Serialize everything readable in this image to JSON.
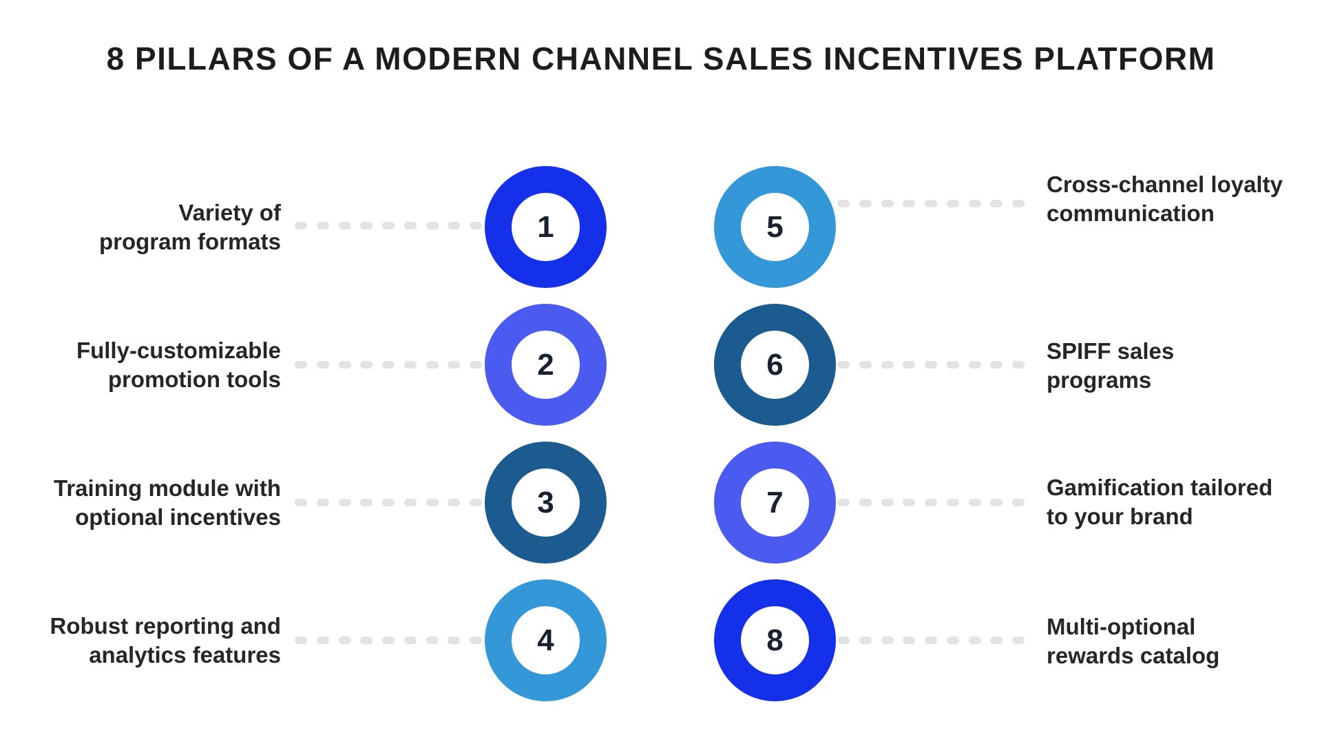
{
  "title": "8 PILLARS OF A MODERN CHANNEL SALES INCENTIVES PLATFORM",
  "colors": {
    "background": "#ffffff",
    "title_text": "#1d1d1d",
    "label_text": "#262626",
    "number_text": "#1a212e",
    "dot": "#e3e3e3",
    "bright_blue": "#1430e8",
    "indigo_blue": "#4b5bf0",
    "dark_steel_blue": "#1c5b8f",
    "sky_blue": "#3498d8"
  },
  "pillars": [
    {
      "number": "1",
      "side": "left",
      "label_line1": "Variety of",
      "label_line2": "program formats",
      "ring_color": "#1430e8"
    },
    {
      "number": "2",
      "side": "left",
      "label_line1": "Fully-customizable",
      "label_line2": "promotion tools",
      "ring_color": "#4b5bf0"
    },
    {
      "number": "3",
      "side": "left",
      "label_line1": "Training module with",
      "label_line2": "optional incentives",
      "ring_color": "#1c5b8f"
    },
    {
      "number": "4",
      "side": "left",
      "label_line1": "Robust reporting and",
      "label_line2": "analytics features",
      "ring_color": "#3498d8"
    },
    {
      "number": "5",
      "side": "right",
      "label_line1": "Cross-channel loyalty",
      "label_line2": "communication",
      "ring_color": "#3498d8"
    },
    {
      "number": "6",
      "side": "right",
      "label_line1": "SPIFF sales",
      "label_line2": "programs",
      "ring_color": "#1c5b8f"
    },
    {
      "number": "7",
      "side": "right",
      "label_line1": "Gamification tailored",
      "label_line2": "to your brand",
      "ring_color": "#4b5bf0"
    },
    {
      "number": "8",
      "side": "right",
      "label_line1": "Multi-optional",
      "label_line2": "rewards catalog",
      "ring_color": "#1430e8"
    }
  ]
}
